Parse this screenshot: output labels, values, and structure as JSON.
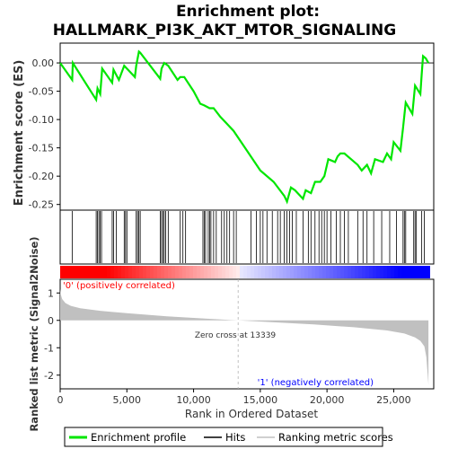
{
  "title_line1": "Enrichment plot:",
  "title_line2": "HALLMARK_PI3K_AKT_MTOR_SIGNALING",
  "colors": {
    "enrichment": "#00e600",
    "hits": "#000000",
    "ranking": "#c0c0c0",
    "pos_label": "#ff0000",
    "neg_label": "#0000ff",
    "zero_line": "#b0b0b0"
  },
  "legend": {
    "enrichment_label": "Enrichment profile",
    "hits_label": "Hits",
    "ranking_label": "Ranking metric scores"
  },
  "chart_data": {
    "type": "line",
    "title": "Enrichment plot: HALLMARK_PI3K_AKT_MTOR_SIGNALING",
    "xlabel": "Rank in Ordered Dataset",
    "xlim": [
      0,
      28000
    ],
    "x_ticks": [
      0,
      5000,
      10000,
      15000,
      20000,
      25000
    ],
    "x_tick_labels": [
      "0",
      "5,000",
      "10,000",
      "15,000",
      "20,000",
      "25,000"
    ],
    "es_panel": {
      "ylabel": "Enrichment score (ES)",
      "ylim": [
        -0.26,
        0.035
      ],
      "y_ticks": [
        0.0,
        -0.05,
        -0.1,
        -0.15,
        -0.2,
        -0.25
      ],
      "y_tick_labels": [
        "0.00",
        "-0.05",
        "-0.10",
        "-0.15",
        "-0.20",
        "-0.25"
      ],
      "series": [
        {
          "name": "Enrichment profile",
          "x": [
            0,
            900,
            950,
            2700,
            2800,
            3000,
            3150,
            3900,
            4000,
            4400,
            4800,
            5000,
            5600,
            5700,
            5900,
            6000,
            6100,
            7500,
            7600,
            7800,
            8100,
            8800,
            9000,
            9300,
            10000,
            10500,
            10800,
            11200,
            11500,
            12000,
            13000,
            14000,
            15000,
            16000,
            16800,
            17000,
            17300,
            17600,
            18200,
            18400,
            18800,
            19100,
            19500,
            19800,
            20100,
            20600,
            20800,
            21000,
            21300,
            22300,
            22600,
            23000,
            23300,
            23600,
            24200,
            24500,
            24800,
            25000,
            25500,
            25700,
            25900,
            26400,
            26600,
            27000,
            27100,
            27200,
            27400,
            27600
          ],
          "y": [
            0.0,
            -0.03,
            0.0,
            -0.065,
            -0.045,
            -0.055,
            -0.01,
            -0.035,
            -0.012,
            -0.03,
            -0.005,
            -0.01,
            -0.025,
            -0.005,
            0.02,
            0.018,
            0.015,
            -0.028,
            -0.01,
            0.0,
            -0.005,
            -0.03,
            -0.025,
            -0.025,
            -0.05,
            -0.072,
            -0.075,
            -0.08,
            -0.08,
            -0.095,
            -0.12,
            -0.155,
            -0.19,
            -0.21,
            -0.235,
            -0.245,
            -0.22,
            -0.225,
            -0.24,
            -0.225,
            -0.23,
            -0.21,
            -0.21,
            -0.2,
            -0.17,
            -0.175,
            -0.165,
            -0.16,
            -0.16,
            -0.18,
            -0.19,
            -0.18,
            -0.195,
            -0.17,
            -0.175,
            -0.16,
            -0.17,
            -0.14,
            -0.155,
            -0.115,
            -0.07,
            -0.09,
            -0.04,
            -0.055,
            -0.02,
            0.012,
            0.008,
            0.0
          ]
        }
      ]
    },
    "hits_panel": {
      "label": "Hits",
      "hit_ranks": [
        900,
        2700,
        2800,
        2900,
        3000,
        3100,
        3900,
        4000,
        4200,
        4800,
        4900,
        5000,
        5700,
        5800,
        5900,
        6000,
        7500,
        7600,
        7700,
        7800,
        7900,
        8100,
        9000,
        9200,
        9400,
        10700,
        10800,
        10900,
        11100,
        11200,
        11300,
        11500,
        11700,
        12100,
        12300,
        12500,
        12700,
        13000,
        13200,
        14300,
        14700,
        15000,
        15200,
        15500,
        15900,
        16300,
        16500,
        16800,
        17000,
        17200,
        17400,
        17700,
        18200,
        18600,
        18800,
        19100,
        19400,
        19600,
        19800,
        20000,
        20300,
        20700,
        21000,
        21300,
        21600,
        22300,
        22700,
        23000,
        23500,
        24100,
        24700,
        25200,
        25700,
        25800,
        25900,
        26500,
        26600,
        26700,
        27100,
        27300
      ]
    },
    "ranking_panel": {
      "ylabel": "Ranked list metric (Signal2Noise)",
      "ylim": [
        -2.5,
        1.5
      ],
      "y_ticks": [
        1,
        0,
        -1,
        -2
      ],
      "y_tick_labels": [
        "1",
        "0",
        "-1",
        "-2"
      ],
      "zero_cross": 13339,
      "zero_cross_label": "Zero cross at 13339",
      "pos_label": "'0' (positively correlated)",
      "neg_label": "'1' (negatively correlated)",
      "series": [
        {
          "name": "Ranking metric scores",
          "x": [
            0,
            50,
            150,
            400,
            800,
            1500,
            3000,
            5000,
            8000,
            11000,
            13339,
            16000,
            19000,
            22000,
            24500,
            25800,
            26600,
            27000,
            27300,
            27450,
            27550,
            27600
          ],
          "y": [
            1.15,
            0.95,
            0.78,
            0.63,
            0.53,
            0.44,
            0.35,
            0.26,
            0.15,
            0.06,
            0.0,
            -0.07,
            -0.15,
            -0.25,
            -0.37,
            -0.48,
            -0.62,
            -0.75,
            -0.95,
            -1.35,
            -2.0,
            -2.35
          ]
        }
      ]
    }
  }
}
